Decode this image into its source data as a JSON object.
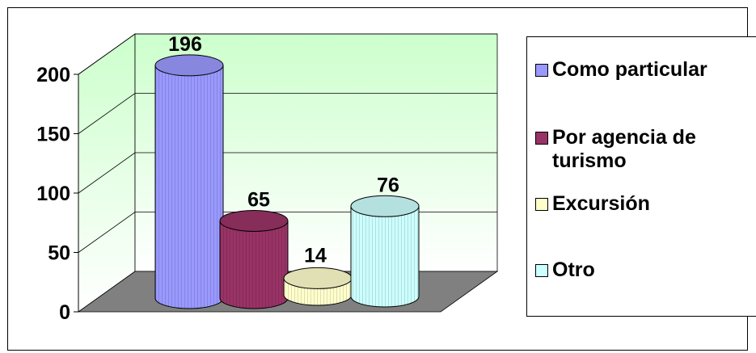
{
  "chart_data": {
    "type": "bar",
    "style": "3d-cylinder",
    "categories": [
      "Como particular",
      "Por agencia de turismo",
      "Excursión",
      "Otro"
    ],
    "values": [
      196,
      65,
      14,
      76
    ],
    "data_labels": [
      "196",
      "65",
      "14",
      "76"
    ],
    "ylim": [
      0,
      200
    ],
    "yticks": [
      0,
      50,
      100,
      150,
      200
    ],
    "ytick_labels": [
      "0",
      "50",
      "100",
      "150",
      "200"
    ],
    "grid": true,
    "legend_position": "right",
    "colors": [
      "#9999ff",
      "#993366",
      "#ffffcc",
      "#ccffff"
    ],
    "wall_gradient": [
      "#ccffcc",
      "#ffffff"
    ],
    "floor_color": "#808080"
  },
  "legend": {
    "items": [
      {
        "label": "Como particular",
        "color": "#9999ff"
      },
      {
        "label": "Por agencia de\nturismo",
        "color": "#993366"
      },
      {
        "label": "Excursión",
        "color": "#ffffcc"
      },
      {
        "label": "Otro",
        "color": "#ccffff"
      }
    ]
  }
}
